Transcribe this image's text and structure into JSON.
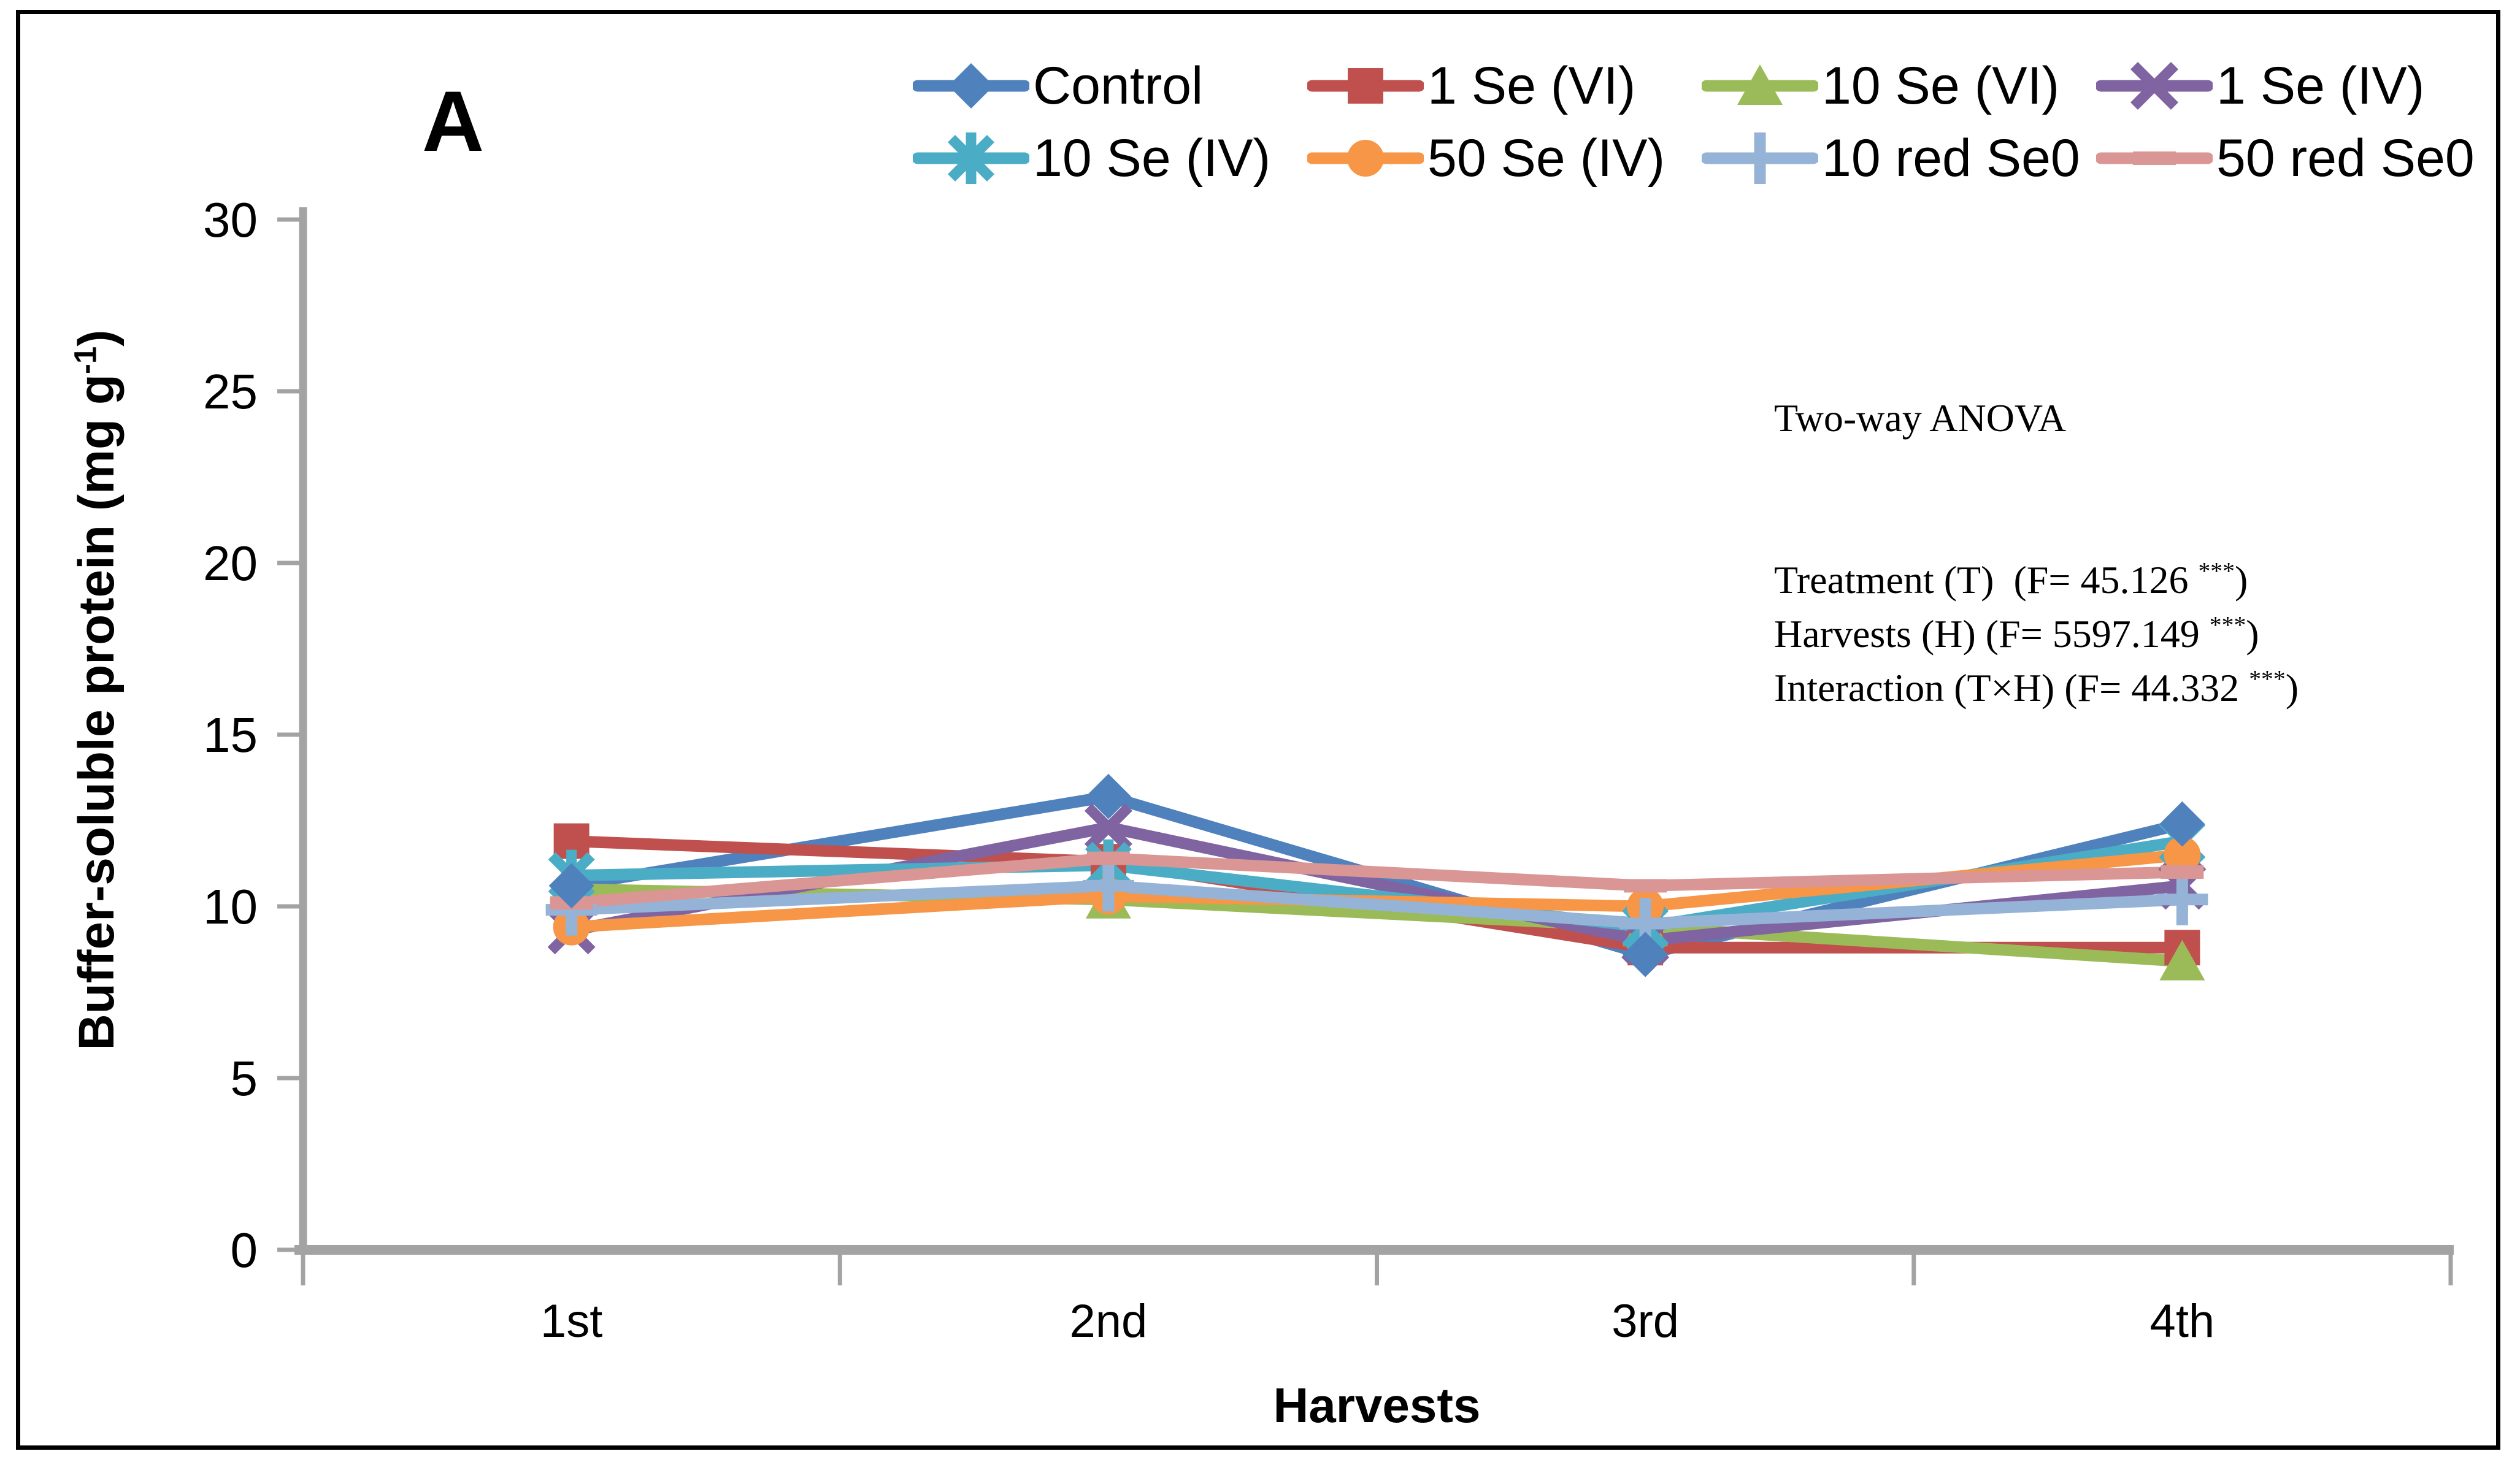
{
  "figure": {
    "panel_label": "A",
    "x_axis_title": "Harvests",
    "y_axis_title": {
      "pre": "Buffer-soluble protein (mg g",
      "sup": "-1",
      "post": ")"
    },
    "anova": {
      "title": "Two-way ANOVA",
      "rows": [
        {
          "pre": "Treatment (T)  (F= 45.126 ",
          "sup": "***",
          "post": ")"
        },
        {
          "pre": "Harvests (H) (F= 5597.149 ",
          "sup": "***",
          "post": ")"
        },
        {
          "pre": "Interaction (T×H) (F= 44.332 ",
          "sup": "***",
          "post": ")"
        }
      ]
    }
  },
  "chart_data": {
    "type": "line",
    "title": "A",
    "xlabel": "Harvests",
    "ylabel": "Buffer-soluble protein (mg g⁻¹)",
    "categories": [
      "1st",
      "2nd",
      "3rd",
      "4th"
    ],
    "ylim": [
      0,
      30
    ],
    "yticks": [
      0,
      5,
      10,
      15,
      20,
      25,
      30
    ],
    "grid": false,
    "legend_position": "top",
    "axis_color": "#A3A3A3",
    "text_color": "#000000",
    "series": [
      {
        "name": "Control",
        "color": "#4F81BD",
        "marker": "diamond",
        "values": [
          10.6,
          13.2,
          8.6,
          12.4
        ]
      },
      {
        "name": "1 Se (VI)",
        "color": "#C0504D",
        "marker": "square",
        "values": [
          11.9,
          11.3,
          8.8,
          8.8
        ]
      },
      {
        "name": "10 Se (VI)",
        "color": "#9BBB59",
        "marker": "triangle",
        "values": [
          10.5,
          10.2,
          9.4,
          8.4
        ]
      },
      {
        "name": "1 Se (IV)",
        "color": "#8064A2",
        "marker": "x",
        "values": [
          9.3,
          12.3,
          9.0,
          10.6
        ]
      },
      {
        "name": "10 Se (IV)",
        "color": "#4BACC6",
        "marker": "asterisk",
        "values": [
          10.9,
          11.2,
          9.4,
          11.9
        ]
      },
      {
        "name": "50 Se (IV)",
        "color": "#F79646",
        "marker": "circle",
        "values": [
          9.4,
          10.3,
          10.0,
          11.5
        ]
      },
      {
        "name": "10 red Se0",
        "color": "#95B3D7",
        "marker": "plus",
        "values": [
          9.9,
          10.6,
          9.5,
          10.2
        ]
      },
      {
        "name": "50 red Se0",
        "color": "#D99694",
        "marker": "dash",
        "values": [
          10.1,
          11.4,
          10.6,
          11.0
        ]
      }
    ]
  }
}
